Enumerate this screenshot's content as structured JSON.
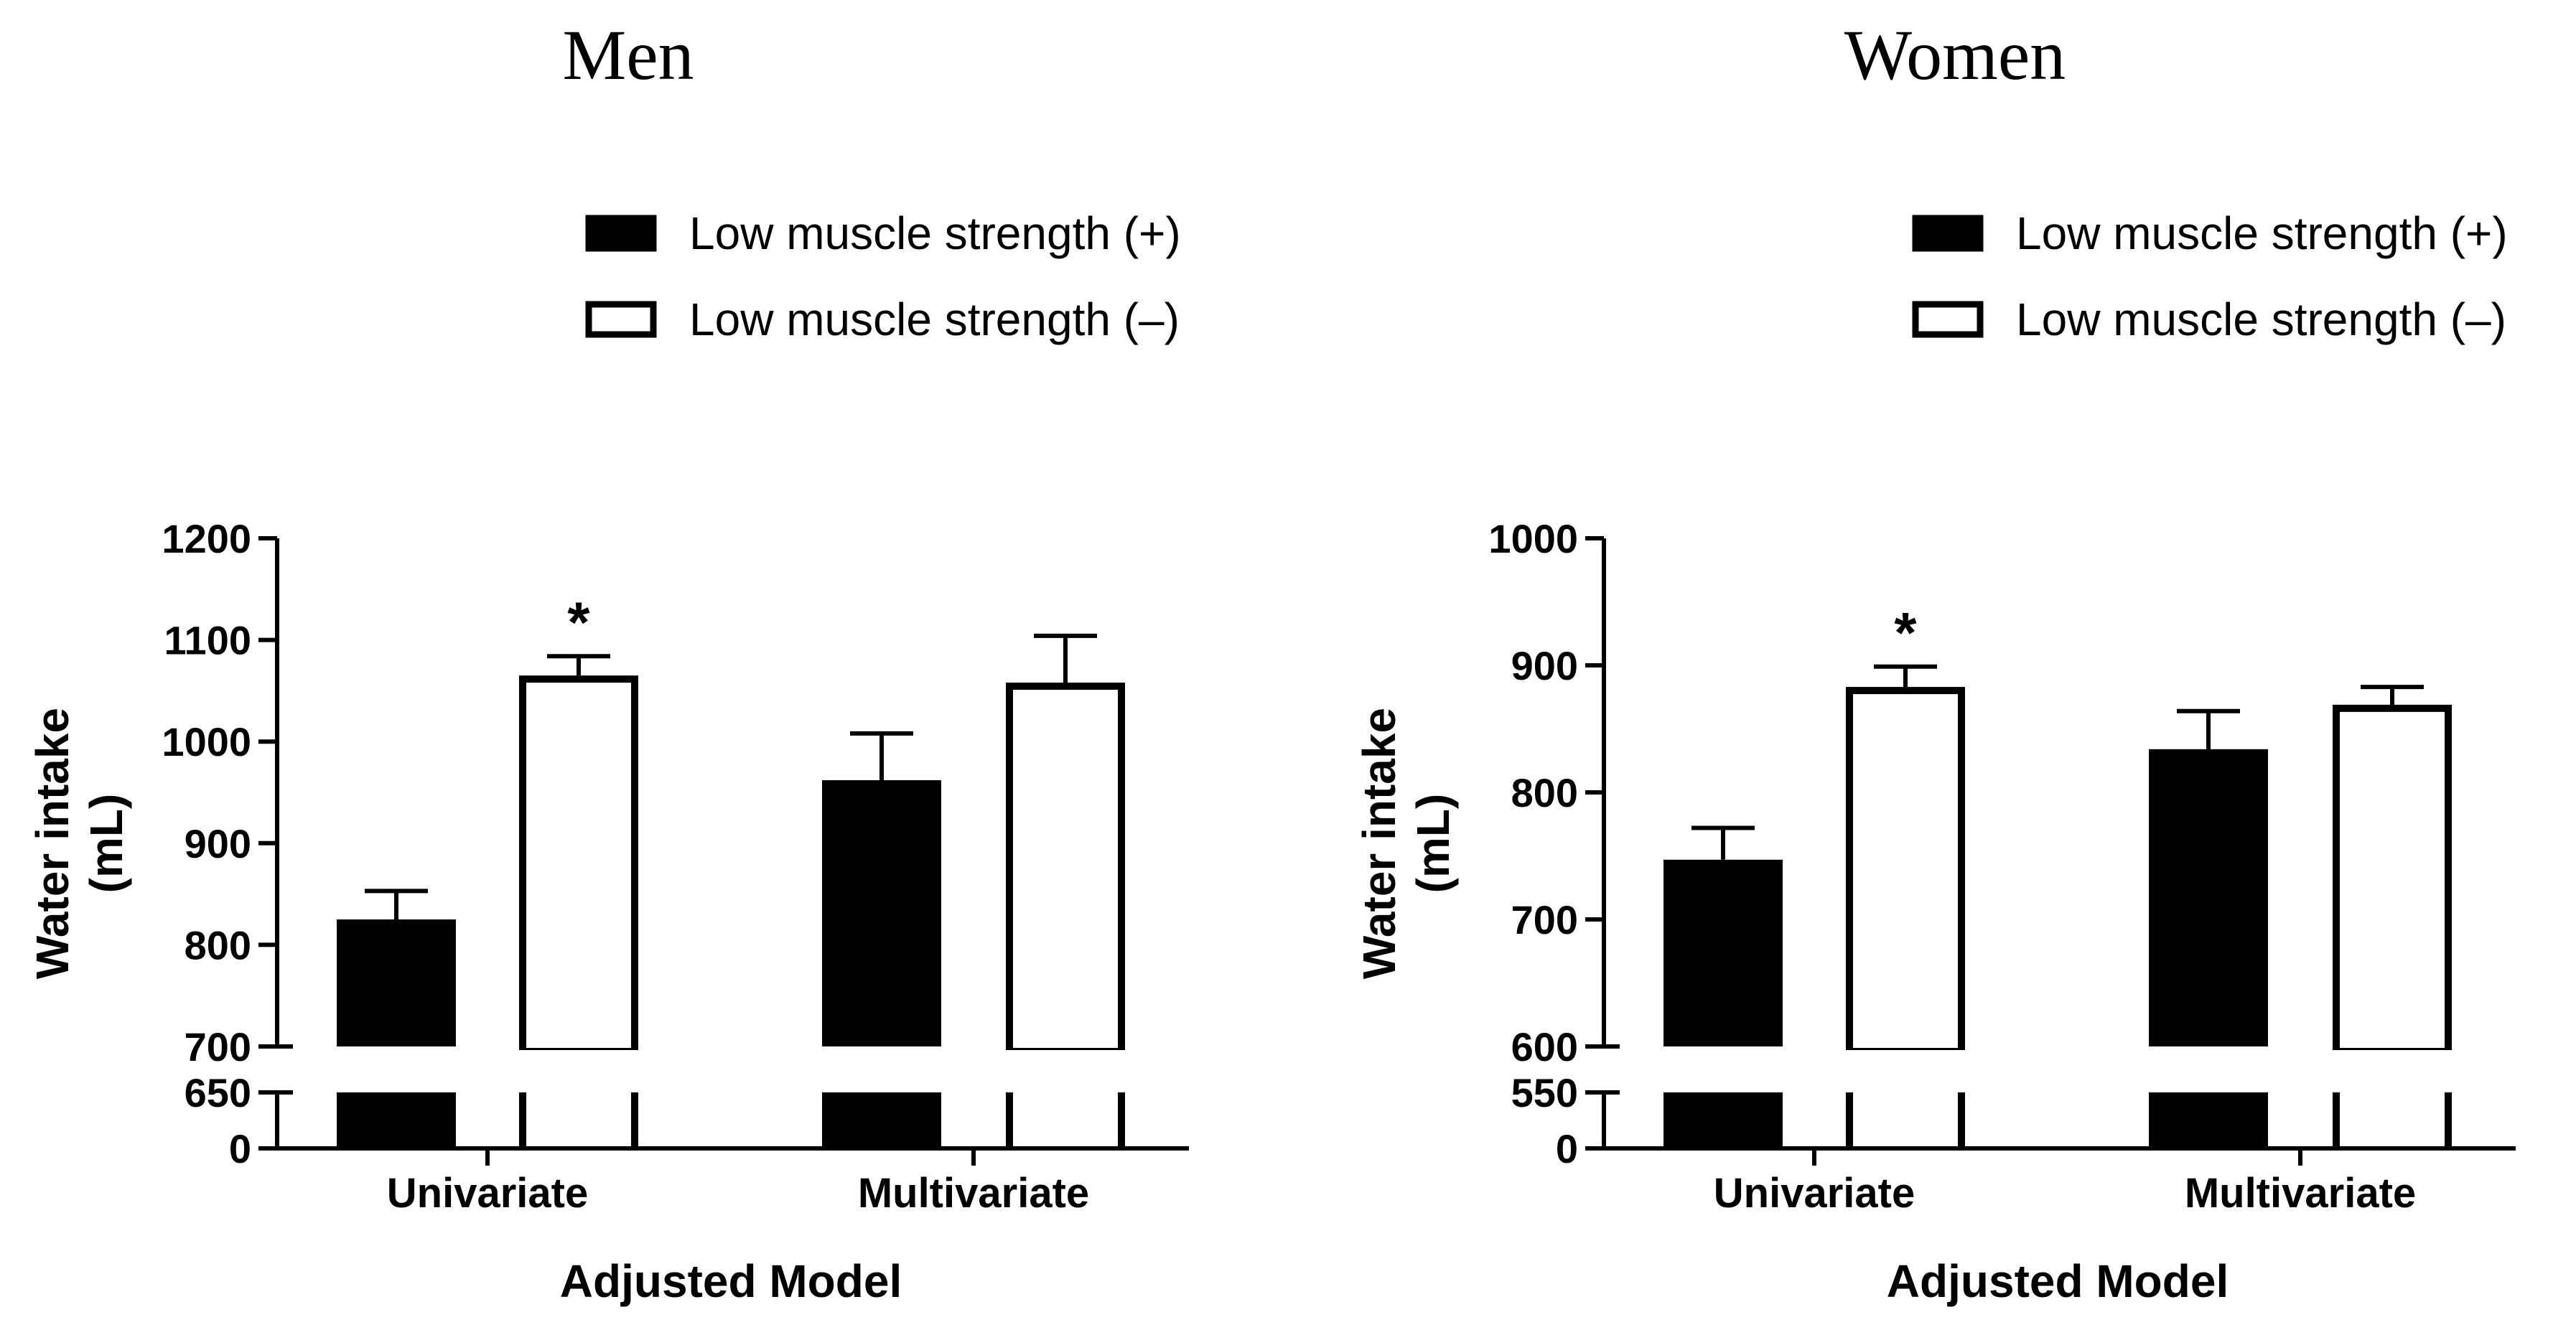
{
  "chart_data": [
    {
      "type": "bar",
      "title": "Men",
      "xlabel": "Adjusted  Model",
      "ylabel_lines": [
        "Water intake",
        "(mL)"
      ],
      "categories": [
        "Univariate",
        "Multivariate"
      ],
      "ylim_upper": [
        700,
        1200
      ],
      "yticks_upper": [
        "700",
        "800",
        "900",
        "1000",
        "1100",
        "1200"
      ],
      "ylim_lower": [
        0,
        650
      ],
      "yticks_lower": [
        "0",
        "650"
      ],
      "series": [
        {
          "name": "Low muscle strength (+)",
          "fill": "#000000",
          "values": [
            825,
            962
          ],
          "errors": [
            28,
            46
          ]
        },
        {
          "name": "Low muscle strength (–)",
          "fill": "#ffffff",
          "values": [
            1065,
            1058
          ],
          "errors": [
            19,
            46
          ]
        }
      ],
      "annotations": [
        {
          "text": "*",
          "category": 0,
          "series": 1
        }
      ]
    },
    {
      "type": "bar",
      "title": "Women",
      "xlabel": "Adjusted  Model",
      "ylabel_lines": [
        "Water intake",
        "(mL)"
      ],
      "categories": [
        "Univariate",
        "Multivariate"
      ],
      "ylim_upper": [
        600,
        1000
      ],
      "yticks_upper": [
        "600",
        "700",
        "800",
        "900",
        "1000"
      ],
      "ylim_lower": [
        0,
        550
      ],
      "yticks_lower": [
        "0",
        "550"
      ],
      "series": [
        {
          "name": "Low muscle strength (+)",
          "fill": "#000000",
          "values": [
            747,
            834
          ],
          "errors": [
            25,
            30
          ]
        },
        {
          "name": "Low muscle strength (–)",
          "fill": "#ffffff",
          "values": [
            883,
            869
          ],
          "errors": [
            16,
            14
          ]
        }
      ],
      "annotations": [
        {
          "text": "*",
          "category": 0,
          "series": 1
        }
      ]
    }
  ]
}
